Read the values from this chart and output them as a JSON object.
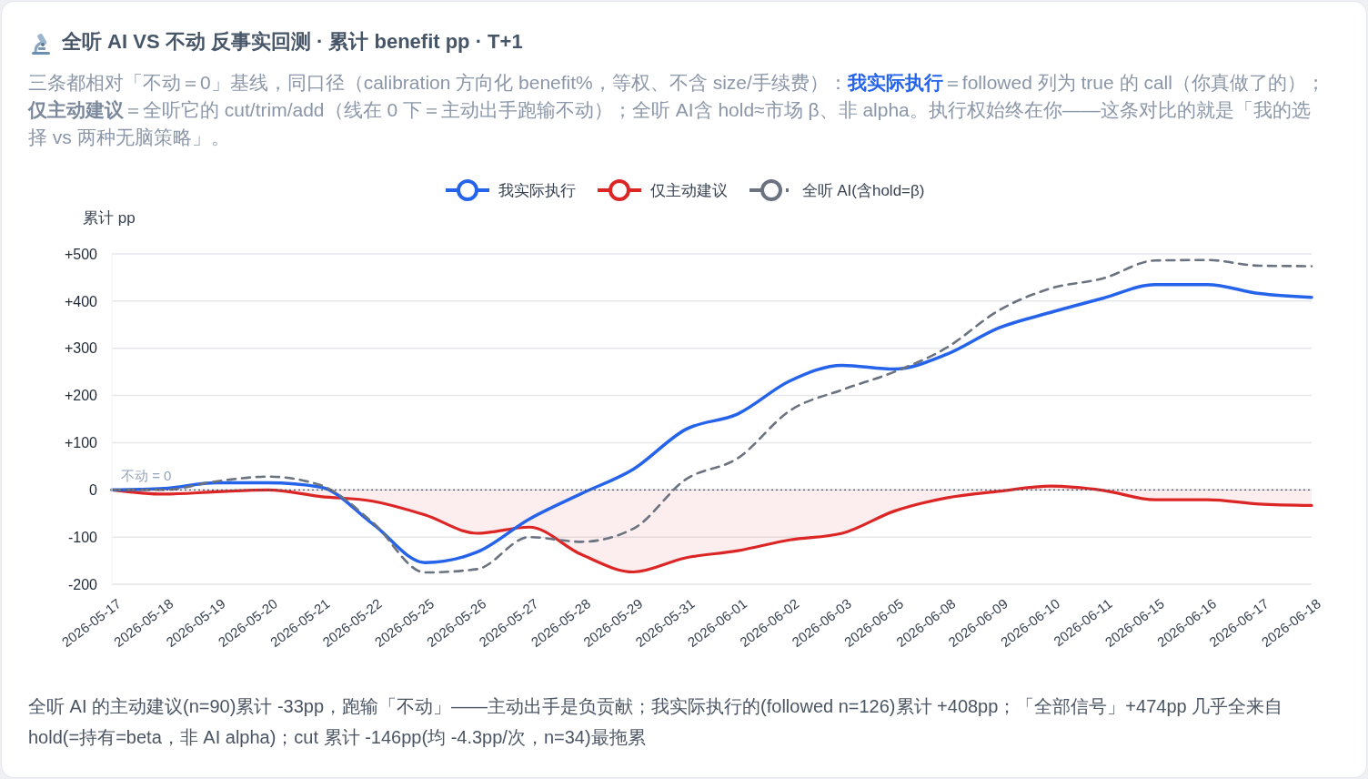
{
  "chart_data": {
    "type": "line",
    "title": "全听 AI VS 不动 反事实回测 · 累计 benefit pp · T+1",
    "subtitle": "三条都相对「不动＝0」基线，同口径（calibration 方向化 benefit%，等权、不含 size/手续费）：我实际执行＝followed 列为 true 的 call（你真做了的）；仅主动建议＝全听它的 cut/trim/add（线在 0 下＝主动出手跑输不动）；全听 AI含 hold≈市场 β、非 alpha。执行权始终在你——这条对比的就是「我的选择 vs 两种无脑策略」。",
    "ylabel": "累计 pp",
    "categories": [
      "2026-05-17",
      "2026-05-18",
      "2026-05-19",
      "2026-05-20",
      "2026-05-21",
      "2026-05-22",
      "2026-05-25",
      "2026-05-26",
      "2026-05-27",
      "2026-05-28",
      "2026-05-29",
      "2026-05-31",
      "2026-06-01",
      "2026-06-02",
      "2026-06-03",
      "2026-06-05",
      "2026-06-08",
      "2026-06-09",
      "2026-06-10",
      "2026-06-11",
      "2026-06-15",
      "2026-06-16",
      "2026-06-17",
      "2026-06-18"
    ],
    "series": [
      {
        "name": "我实际执行",
        "color": "#2563eb",
        "values": [
          0,
          3,
          15,
          15,
          6,
          -72,
          -154,
          -132,
          -62,
          -8,
          44,
          128,
          161,
          231,
          264,
          256,
          287,
          343,
          376,
          406,
          435,
          435,
          416,
          408
        ]
      },
      {
        "name": "仅主动建议",
        "color": "#dc2626",
        "type": "area",
        "values": [
          0,
          -9,
          -4,
          0,
          -14,
          -24,
          -53,
          -92,
          -79,
          -137,
          -174,
          -144,
          -129,
          -106,
          -92,
          -45,
          -17,
          -3,
          8,
          -1,
          -21,
          -21,
          -30,
          -33
        ]
      },
      {
        "name": "全听 AI(含hold=β)",
        "color": "#6b7280",
        "line_style": "dashed",
        "values": [
          0,
          0,
          18,
          28,
          10,
          -69,
          -175,
          -168,
          -100,
          -110,
          -82,
          22,
          67,
          168,
          212,
          250,
          301,
          380,
          427,
          448,
          486,
          487,
          475,
          474
        ]
      }
    ],
    "ylim": [
      -200,
      500
    ],
    "yticks": [
      -200,
      -100,
      0,
      {
        "value": 100,
        "label": "+100"
      },
      {
        "value": 200,
        "label": "+200"
      },
      {
        "value": 300,
        "label": "+300"
      },
      {
        "value": 400,
        "label": "+400"
      },
      {
        "value": 500,
        "label": "+500"
      }
    ],
    "grid": "y",
    "legend": "top",
    "line_style": "solid",
    "ref_lines": [
      {
        "axis": "y",
        "value": 0,
        "label": "不动 = 0",
        "color": "#4b5563",
        "line_style": "dotted"
      }
    ],
    "annotations": [
      "全听 AI 的主动建议(n=90)累计 -33pp，跑输「不动」——主动出手是负贡献；我实际执行的(followed n=126)累计 +408pp；「全部信号」+474pp 几乎全来自 hold(=持有=beta，非 AI alpha)；cut 累计 -146pp(均 -4.3pp/次，n=34)最拖累"
    ]
  }
}
